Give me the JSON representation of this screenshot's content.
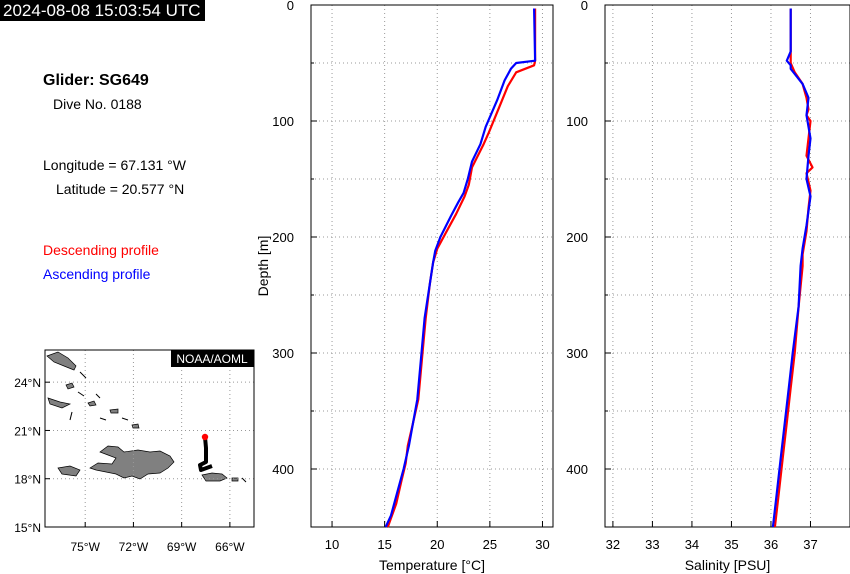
{
  "header": {
    "timestamp": "2024-08-08 15:03:54 UTC"
  },
  "glider": {
    "title": "Glider: SG649",
    "dive": "Dive No. 0188",
    "longitude": "Longitude = 67.131 °W",
    "latitude": "Latitude = 20.577 °N"
  },
  "legend": {
    "descending": "Descending profile",
    "ascending": "Ascending profile",
    "descending_color": "#ff0000",
    "ascending_color": "#0000ff"
  },
  "map": {
    "credit": "NOAA/AOML",
    "lat_ticks": [
      "24°N",
      "21°N",
      "18°N",
      "15°N"
    ],
    "lon_ticks": [
      "75°W",
      "72°W",
      "69°W",
      "66°W"
    ],
    "track_color": "#000000",
    "position_color": "#ff0000"
  },
  "chart_data": [
    {
      "type": "line",
      "xlabel": "Temperature [°C]",
      "ylabel": "Depth [m]",
      "xlim": [
        8,
        31
      ],
      "ylim": [
        450,
        0
      ],
      "xticks": [
        10,
        15,
        20,
        25,
        30
      ],
      "yticks": [
        0,
        100,
        200,
        300,
        400
      ],
      "grid": true,
      "series": [
        {
          "name": "Descending profile",
          "color": "#ff0000",
          "points": [
            [
              29.3,
              3
            ],
            [
              29.3,
              48
            ],
            [
              29.2,
              52
            ],
            [
              27.5,
              58
            ],
            [
              26.7,
              70
            ],
            [
              25.8,
              90
            ],
            [
              24.9,
              110
            ],
            [
              24.4,
              120
            ],
            [
              23.3,
              140
            ],
            [
              23.0,
              155
            ],
            [
              22.6,
              165
            ],
            [
              21.8,
              180
            ],
            [
              20.9,
              195
            ],
            [
              20.0,
              210
            ],
            [
              19.6,
              222
            ],
            [
              19.3,
              240
            ],
            [
              18.9,
              270
            ],
            [
              18.6,
              300
            ],
            [
              18.2,
              340
            ],
            [
              17.7,
              360
            ],
            [
              17.2,
              380
            ],
            [
              17.0,
              395
            ],
            [
              16.6,
              410
            ],
            [
              16.1,
              430
            ],
            [
              15.3,
              450
            ]
          ]
        },
        {
          "name": "Ascending profile",
          "color": "#0000ff",
          "points": [
            [
              29.2,
              3
            ],
            [
              29.3,
              48
            ],
            [
              27.5,
              50
            ],
            [
              27.0,
              55
            ],
            [
              26.4,
              65
            ],
            [
              25.7,
              82
            ],
            [
              24.6,
              105
            ],
            [
              24.1,
              120
            ],
            [
              23.3,
              135
            ],
            [
              22.9,
              150
            ],
            [
              22.5,
              162
            ],
            [
              22.0,
              170
            ],
            [
              21.3,
              182
            ],
            [
              20.3,
              200
            ],
            [
              19.8,
              212
            ],
            [
              19.6,
              222
            ],
            [
              19.3,
              240
            ],
            [
              18.8,
              270
            ],
            [
              18.5,
              300
            ],
            [
              18.1,
              340
            ],
            [
              17.5,
              370
            ],
            [
              17.3,
              380
            ],
            [
              16.8,
              400
            ],
            [
              16.2,
              420
            ],
            [
              15.6,
              440
            ],
            [
              15.1,
              450
            ]
          ]
        }
      ]
    },
    {
      "type": "line",
      "xlabel": "Salinity [PSU]",
      "ylabel": "",
      "xlim": [
        31.8,
        38.0
      ],
      "ylim": [
        450,
        0
      ],
      "xticks": [
        32,
        33,
        34,
        35,
        36,
        37
      ],
      "yticks": [
        0,
        100,
        200,
        300,
        400
      ],
      "grid": true,
      "series": [
        {
          "name": "Descending profile",
          "color": "#ff0000",
          "points": [
            [
              36.5,
              3
            ],
            [
              36.5,
              45
            ],
            [
              36.5,
              50
            ],
            [
              36.6,
              58
            ],
            [
              36.8,
              68
            ],
            [
              36.9,
              80
            ],
            [
              36.95,
              90
            ],
            [
              36.9,
              95
            ],
            [
              37.0,
              100
            ],
            [
              36.95,
              115
            ],
            [
              36.9,
              130
            ],
            [
              37.05,
              140
            ],
            [
              36.9,
              145
            ],
            [
              37.0,
              160
            ],
            [
              36.95,
              175
            ],
            [
              36.9,
              195
            ],
            [
              36.8,
              215
            ],
            [
              36.8,
              225
            ],
            [
              36.7,
              260
            ],
            [
              36.6,
              300
            ],
            [
              36.5,
              330
            ],
            [
              36.4,
              360
            ],
            [
              36.3,
              390
            ],
            [
              36.2,
              420
            ],
            [
              36.1,
              450
            ]
          ]
        },
        {
          "name": "Ascending profile",
          "color": "#0000ff",
          "points": [
            [
              36.5,
              3
            ],
            [
              36.5,
              40
            ],
            [
              36.4,
              48
            ],
            [
              36.5,
              52
            ],
            [
              36.5,
              55
            ],
            [
              36.8,
              68
            ],
            [
              36.95,
              80
            ],
            [
              36.9,
              95
            ],
            [
              37.0,
              115
            ],
            [
              36.95,
              130
            ],
            [
              36.9,
              150
            ],
            [
              37.0,
              165
            ],
            [
              36.9,
              190
            ],
            [
              36.8,
              210
            ],
            [
              36.75,
              225
            ],
            [
              36.7,
              260
            ],
            [
              36.55,
              300
            ],
            [
              36.45,
              330
            ],
            [
              36.35,
              360
            ],
            [
              36.25,
              390
            ],
            [
              36.15,
              420
            ],
            [
              36.05,
              450
            ]
          ]
        }
      ]
    }
  ]
}
